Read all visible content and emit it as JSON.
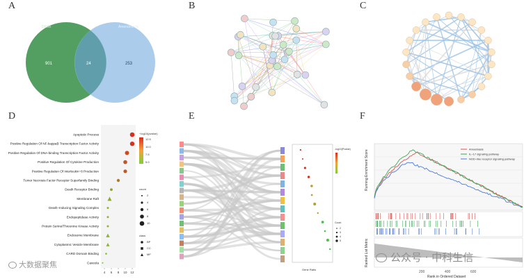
{
  "panels": {
    "a": {
      "letter": "A"
    },
    "b": {
      "letter": "B"
    },
    "c": {
      "letter": "C"
    },
    "d": {
      "letter": "D"
    },
    "e": {
      "letter": "E"
    },
    "f": {
      "letter": "F"
    }
  },
  "venn": {
    "left_label": "DEGs",
    "right_label": "Amendments",
    "left_only": "901",
    "intersection": "24",
    "right_only": "253",
    "left_color": "#4a9a58",
    "right_color": "#9cc3e6"
  },
  "dotplot": {
    "legend_title": "−log10(pvalue)",
    "color_ticks": [
      "12.5",
      "10.0",
      "7.5",
      "5.0"
    ],
    "count_title": "count",
    "count_ticks": [
      "2",
      "4",
      "6",
      "8",
      "10"
    ],
    "class_title": "class",
    "class_items": [
      "BP",
      "CC",
      "MF"
    ],
    "x_ticks": [
      "4",
      "6",
      "8",
      "10",
      "12"
    ]
  },
  "sankey": {
    "legend_title": "-log10(Pvalue)",
    "count_title": "Count",
    "count_ticks": [
      "2",
      "3",
      "4",
      "5"
    ],
    "xlabel": "Gene Ratio"
  },
  "gsea": {
    "legend": [
      "Amoebiasis",
      "IL−17 signaling pathway",
      "NOD−like receptor signaling pathway"
    ],
    "ylabel_top": "Running Enrichment Score",
    "ylabel_bottom": "Ranked List Metric",
    "xlabel": "Rank in Ordered Dataset",
    "x_ticks": [
      "200",
      "400",
      "600"
    ],
    "colors": [
      "#d9534f",
      "#3aa655",
      "#4a78d6"
    ]
  },
  "watermarks": {
    "left": "大数据聚焦",
    "right": "公众号 · 中科生信"
  },
  "chart_data": [
    {
      "type": "bar",
      "title": "",
      "categories": [
        "Apoptotic Process",
        "Positive Regulation Of NF-kappaB Transcription Factor Activity",
        "Positive Regulation Of DNA-binding Transcription Factor Activity",
        "Positive Regulation Of Cytokine Production",
        "Positive Regulation Of Interleukin−8 Production",
        "Tumor Necrosis Factor Receptor Superfamily Binding",
        "Death Receptor Binding",
        "Membrane Raft",
        "Death−Inducing Signaling Complex",
        "Endopeptidase Activity",
        "Protein Serine/Threonine Kinase Activity",
        "Endosome Membrane",
        "Cytoplasmic Vesicle Membrane",
        "CARD Domain Binding",
        "Caveola"
      ],
      "values": [
        12,
        12,
        10.5,
        10,
        10,
        8,
        6,
        5.5,
        5,
        5,
        5,
        5,
        5,
        4.5,
        3.5
      ],
      "xlim": [
        3,
        13
      ],
      "xlabel": "",
      "ylabel": ""
    }
  ]
}
